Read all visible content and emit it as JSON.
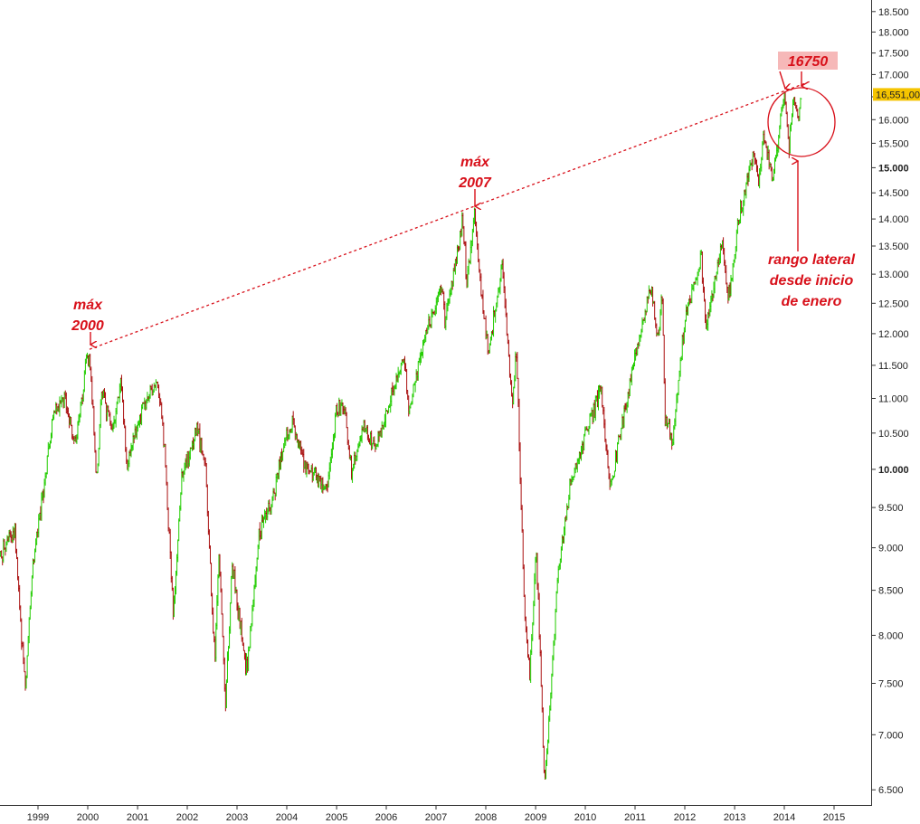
{
  "chart_data": {
    "type": "candlestick",
    "y_scale": "log",
    "ylim": [
      6400,
      18700
    ],
    "xlim": [
      "1998-04-01",
      "2015-12-31"
    ],
    "grid": false,
    "up_color": "#22cc00",
    "down_color": "#aa1111",
    "annotation_color": "#d8101a",
    "price_badge_color": "#f5c400",
    "y_ticks": [
      {
        "value": 6500,
        "label": "6.500"
      },
      {
        "value": 7000,
        "label": "7.000"
      },
      {
        "value": 7500,
        "label": "7.500"
      },
      {
        "value": 8000,
        "label": "8.000"
      },
      {
        "value": 8500,
        "label": "8.500"
      },
      {
        "value": 9000,
        "label": "9.000"
      },
      {
        "value": 9500,
        "label": "9.500"
      },
      {
        "value": 10000,
        "label": "10.000",
        "major": true
      },
      {
        "value": 10500,
        "label": "10.500"
      },
      {
        "value": 11000,
        "label": "11.000"
      },
      {
        "value": 11500,
        "label": "11.500"
      },
      {
        "value": 12000,
        "label": "12.000"
      },
      {
        "value": 12500,
        "label": "12.500"
      },
      {
        "value": 13000,
        "label": "13.000"
      },
      {
        "value": 13500,
        "label": "13.500"
      },
      {
        "value": 14000,
        "label": "14.000"
      },
      {
        "value": 14500,
        "label": "14.500"
      },
      {
        "value": 15000,
        "label": "15.000",
        "major": true
      },
      {
        "value": 15500,
        "label": "15.500"
      },
      {
        "value": 16000,
        "label": "16.000"
      },
      {
        "value": 16500,
        "label": "16.500"
      },
      {
        "value": 17000,
        "label": "17.000"
      },
      {
        "value": 17500,
        "label": "17.500"
      },
      {
        "value": 18000,
        "label": "18.000"
      },
      {
        "value": 18500,
        "label": "18.500"
      }
    ],
    "x_ticks": [
      {
        "date": "1999-01-01",
        "label": "1999"
      },
      {
        "date": "2000-01-01",
        "label": "2000"
      },
      {
        "date": "2001-01-01",
        "label": "2001"
      },
      {
        "date": "2002-01-01",
        "label": "2002"
      },
      {
        "date": "2003-01-01",
        "label": "2003"
      },
      {
        "date": "2004-01-01",
        "label": "2004"
      },
      {
        "date": "2005-01-01",
        "label": "2005"
      },
      {
        "date": "2006-01-01",
        "label": "2006"
      },
      {
        "date": "2007-01-01",
        "label": "2007"
      },
      {
        "date": "2008-01-01",
        "label": "2008"
      },
      {
        "date": "2009-01-01",
        "label": "2009"
      },
      {
        "date": "2010-01-01",
        "label": "2010"
      },
      {
        "date": "2011-01-01",
        "label": "2011"
      },
      {
        "date": "2012-01-01",
        "label": "2012"
      },
      {
        "date": "2013-01-01",
        "label": "2013"
      },
      {
        "date": "2014-01-01",
        "label": "2014"
      },
      {
        "date": "2015-01-01",
        "label": "2015"
      }
    ],
    "price_path": [
      [
        "1998-04-01",
        8900
      ],
      [
        "1998-07-15",
        9200
      ],
      [
        "1998-09-01",
        8000
      ],
      [
        "1998-10-01",
        7500
      ],
      [
        "1998-11-15",
        8600
      ],
      [
        "1999-01-01",
        9300
      ],
      [
        "1999-05-01",
        10800
      ],
      [
        "1999-07-15",
        11000
      ],
      [
        "1999-10-01",
        10300
      ],
      [
        "1999-12-15",
        11400
      ],
      [
        "2000-01-14",
        11700
      ],
      [
        "2000-03-07",
        9850
      ],
      [
        "2000-04-15",
        11200
      ],
      [
        "2000-07-01",
        10500
      ],
      [
        "2000-09-01",
        11300
      ],
      [
        "2000-10-15",
        10000
      ],
      [
        "2001-01-15",
        10700
      ],
      [
        "2001-05-20",
        11300
      ],
      [
        "2001-07-15",
        10400
      ],
      [
        "2001-09-21",
        8200
      ],
      [
        "2001-11-15",
        9800
      ],
      [
        "2002-03-15",
        10600
      ],
      [
        "2002-05-15",
        10000
      ],
      [
        "2002-07-23",
        7700
      ],
      [
        "2002-08-20",
        9000
      ],
      [
        "2002-10-09",
        7280
      ],
      [
        "2002-11-25",
        8800
      ],
      [
        "2003-03-11",
        7600
      ],
      [
        "2003-06-15",
        9200
      ],
      [
        "2003-09-15",
        9600
      ],
      [
        "2003-12-31",
        10450
      ],
      [
        "2004-02-15",
        10700
      ],
      [
        "2004-05-15",
        10000
      ],
      [
        "2004-08-15",
        9900
      ],
      [
        "2004-10-25",
        9800
      ],
      [
        "2004-12-31",
        10800
      ],
      [
        "2005-03-01",
        10900
      ],
      [
        "2005-04-20",
        10000
      ],
      [
        "2005-07-15",
        10600
      ],
      [
        "2005-10-15",
        10250
      ],
      [
        "2005-12-31",
        10800
      ],
      [
        "2006-05-10",
        11600
      ],
      [
        "2006-06-15",
        10800
      ],
      [
        "2006-10-15",
        12000
      ],
      [
        "2006-12-31",
        12450
      ],
      [
        "2007-02-20",
        12750
      ],
      [
        "2007-03-05",
        12100
      ],
      [
        "2007-07-15",
        14000
      ],
      [
        "2007-08-15",
        12800
      ],
      [
        "2007-10-09",
        14100
      ],
      [
        "2007-11-26",
        12700
      ],
      [
        "2008-01-22",
        11700
      ],
      [
        "2008-05-01",
        13100
      ],
      [
        "2008-07-15",
        10900
      ],
      [
        "2008-08-15",
        11700
      ],
      [
        "2008-10-10",
        8300
      ],
      [
        "2008-11-20",
        7600
      ],
      [
        "2009-01-06",
        9000
      ],
      [
        "2009-03-09",
        6550
      ],
      [
        "2009-06-15",
        8700
      ],
      [
        "2009-09-15",
        9800
      ],
      [
        "2009-12-31",
        10450
      ],
      [
        "2010-04-26",
        11200
      ],
      [
        "2010-07-02",
        9700
      ],
      [
        "2010-09-15",
        10500
      ],
      [
        "2010-12-31",
        11600
      ],
      [
        "2011-04-29",
        12800
      ],
      [
        "2011-06-15",
        11900
      ],
      [
        "2011-07-21",
        12700
      ],
      [
        "2011-08-09",
        10700
      ],
      [
        "2011-10-04",
        10400
      ],
      [
        "2011-12-31",
        12200
      ],
      [
        "2012-05-01",
        13300
      ],
      [
        "2012-06-04",
        12100
      ],
      [
        "2012-10-05",
        13600
      ],
      [
        "2012-11-15",
        12500
      ],
      [
        "2013-01-31",
        14000
      ],
      [
        "2013-05-28",
        15400
      ],
      [
        "2013-06-24",
        14700
      ],
      [
        "2013-08-02",
        15650
      ],
      [
        "2013-10-08",
        14750
      ],
      [
        "2013-12-31",
        16580
      ],
      [
        "2014-02-03",
        15350
      ],
      [
        "2014-03-07",
        16450
      ],
      [
        "2014-04-11",
        16000
      ],
      [
        "2014-05-02",
        16551
      ]
    ],
    "trendline": {
      "from": {
        "date": "2000-01-14",
        "value": 11750
      },
      "to": {
        "date": "2014-07-15",
        "value": 16850
      }
    },
    "annotations": [
      {
        "lines": [
          "máx",
          "2000"
        ],
        "arrow_date": "2000-01-14",
        "arrow_value": 11750
      },
      {
        "lines": [
          "máx",
          "2007"
        ],
        "arrow_date": "2007-10-09",
        "arrow_value": 14150
      },
      {
        "lines": [
          "16750"
        ],
        "highlighted": true
      },
      {
        "lines": [
          "rango lateral",
          "desde inicio",
          "de enero"
        ]
      }
    ],
    "last_price": {
      "value": 16551,
      "label": "16,551,00"
    }
  }
}
